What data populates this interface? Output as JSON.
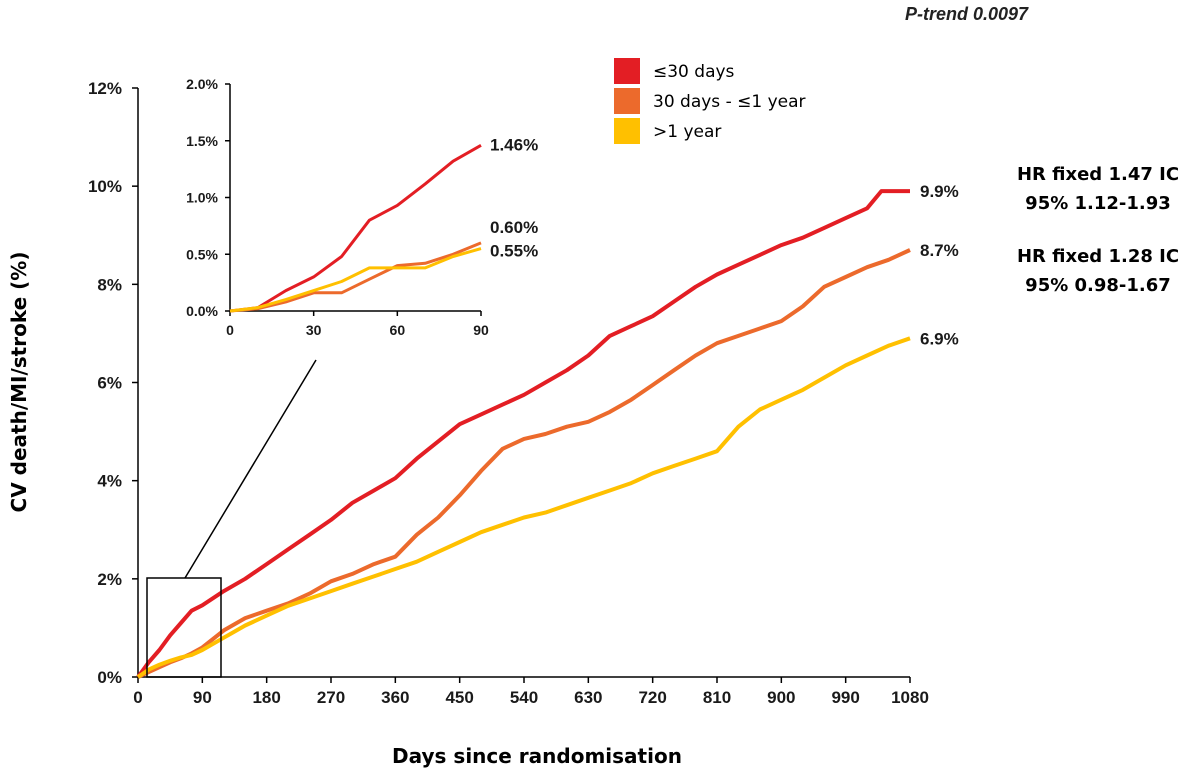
{
  "chart_data": [
    {
      "type": "line",
      "title": "",
      "xlabel": "Days since randomisation",
      "ylabel": "CV death/MI/stroke  (%)",
      "xlim": [
        0,
        1080
      ],
      "ylim": [
        0,
        12
      ],
      "x_ticks": [
        "0",
        "90",
        "180",
        "270",
        "360",
        "450",
        "540",
        "630",
        "720",
        "810",
        "900",
        "990",
        "1080"
      ],
      "y_ticks": [
        "0%",
        "2%",
        "4%",
        "6%",
        "8%",
        "10%",
        "12%"
      ],
      "legend_position": "top-center",
      "series": [
        {
          "name": "≤30 days",
          "color": "#e31e24",
          "end_label": "9.9%",
          "points": [
            [
              0,
              0
            ],
            [
              15,
              0.3
            ],
            [
              30,
              0.55
            ],
            [
              45,
              0.85
            ],
            [
              60,
              1.1
            ],
            [
              75,
              1.35
            ],
            [
              90,
              1.46
            ],
            [
              120,
              1.75
            ],
            [
              150,
              2.0
            ],
            [
              180,
              2.3
            ],
            [
              210,
              2.6
            ],
            [
              240,
              2.9
            ],
            [
              270,
              3.2
            ],
            [
              300,
              3.55
            ],
            [
              330,
              3.8
            ],
            [
              360,
              4.05
            ],
            [
              390,
              4.45
            ],
            [
              420,
              4.8
            ],
            [
              450,
              5.15
            ],
            [
              480,
              5.35
            ],
            [
              510,
              5.55
            ],
            [
              540,
              5.75
            ],
            [
              570,
              6.0
            ],
            [
              600,
              6.25
            ],
            [
              630,
              6.55
            ],
            [
              660,
              6.95
            ],
            [
              690,
              7.15
            ],
            [
              720,
              7.35
            ],
            [
              750,
              7.65
            ],
            [
              780,
              7.95
            ],
            [
              810,
              8.2
            ],
            [
              840,
              8.4
            ],
            [
              870,
              8.6
            ],
            [
              900,
              8.8
            ],
            [
              930,
              8.95
            ],
            [
              960,
              9.15
            ],
            [
              990,
              9.35
            ],
            [
              1020,
              9.55
            ],
            [
              1040,
              9.9
            ],
            [
              1080,
              9.9
            ]
          ]
        },
        {
          "name": "30 days - ≤1 year",
          "color": "#ec6a2c",
          "end_label": "8.7%",
          "points": [
            [
              0,
              0
            ],
            [
              15,
              0.1
            ],
            [
              30,
              0.2
            ],
            [
              45,
              0.3
            ],
            [
              60,
              0.38
            ],
            [
              75,
              0.48
            ],
            [
              90,
              0.6
            ],
            [
              120,
              0.95
            ],
            [
              150,
              1.2
            ],
            [
              180,
              1.35
            ],
            [
              210,
              1.5
            ],
            [
              240,
              1.7
            ],
            [
              270,
              1.95
            ],
            [
              300,
              2.1
            ],
            [
              330,
              2.3
            ],
            [
              360,
              2.45
            ],
            [
              390,
              2.9
            ],
            [
              420,
              3.25
            ],
            [
              450,
              3.7
            ],
            [
              480,
              4.2
            ],
            [
              510,
              4.65
            ],
            [
              540,
              4.85
            ],
            [
              570,
              4.95
            ],
            [
              600,
              5.1
            ],
            [
              630,
              5.2
            ],
            [
              660,
              5.4
            ],
            [
              690,
              5.65
            ],
            [
              720,
              5.95
            ],
            [
              750,
              6.25
            ],
            [
              780,
              6.55
            ],
            [
              810,
              6.8
            ],
            [
              840,
              6.95
            ],
            [
              870,
              7.1
            ],
            [
              900,
              7.25
            ],
            [
              930,
              7.55
            ],
            [
              960,
              7.95
            ],
            [
              990,
              8.15
            ],
            [
              1020,
              8.35
            ],
            [
              1050,
              8.5
            ],
            [
              1080,
              8.7
            ]
          ]
        },
        {
          "name": ">1 year",
          "color": "#ffc000",
          "end_label": "6.9%",
          "points": [
            [
              0,
              0
            ],
            [
              15,
              0.15
            ],
            [
              30,
              0.25
            ],
            [
              45,
              0.33
            ],
            [
              60,
              0.4
            ],
            [
              75,
              0.45
            ],
            [
              90,
              0.55
            ],
            [
              120,
              0.8
            ],
            [
              150,
              1.05
            ],
            [
              180,
              1.25
            ],
            [
              210,
              1.45
            ],
            [
              240,
              1.6
            ],
            [
              270,
              1.75
            ],
            [
              300,
              1.9
            ],
            [
              330,
              2.05
            ],
            [
              360,
              2.2
            ],
            [
              390,
              2.35
            ],
            [
              420,
              2.55
            ],
            [
              450,
              2.75
            ],
            [
              480,
              2.95
            ],
            [
              510,
              3.1
            ],
            [
              540,
              3.25
            ],
            [
              570,
              3.35
            ],
            [
              600,
              3.5
            ],
            [
              630,
              3.65
            ],
            [
              660,
              3.8
            ],
            [
              690,
              3.95
            ],
            [
              720,
              4.15
            ],
            [
              750,
              4.3
            ],
            [
              780,
              4.45
            ],
            [
              810,
              4.6
            ],
            [
              840,
              5.1
            ],
            [
              870,
              5.45
            ],
            [
              900,
              5.65
            ],
            [
              930,
              5.85
            ],
            [
              960,
              6.1
            ],
            [
              990,
              6.35
            ],
            [
              1020,
              6.55
            ],
            [
              1050,
              6.75
            ],
            [
              1080,
              6.9
            ]
          ]
        }
      ]
    },
    {
      "type": "line",
      "title": "",
      "xlim": [
        0,
        90
      ],
      "ylim": [
        0,
        2
      ],
      "x_ticks": [
        "0",
        "30",
        "60",
        "90"
      ],
      "y_ticks": [
        "0.0%",
        "0.5%",
        "1.0%",
        "1.5%",
        "2.0%"
      ],
      "series": [
        {
          "name": "≤30 days",
          "color": "#e31e24",
          "end_label": "1.46%",
          "points": [
            [
              0,
              0
            ],
            [
              10,
              0.03
            ],
            [
              20,
              0.18
            ],
            [
              30,
              0.3
            ],
            [
              40,
              0.48
            ],
            [
              50,
              0.8
            ],
            [
              60,
              0.93
            ],
            [
              70,
              1.12
            ],
            [
              80,
              1.32
            ],
            [
              90,
              1.46
            ]
          ]
        },
        {
          "name": "30 days - ≤1 year",
          "color": "#ec6a2c",
          "end_label": "0.60%",
          "points": [
            [
              0,
              0
            ],
            [
              10,
              0.02
            ],
            [
              20,
              0.08
            ],
            [
              30,
              0.16
            ],
            [
              40,
              0.16
            ],
            [
              50,
              0.28
            ],
            [
              60,
              0.4
            ],
            [
              70,
              0.42
            ],
            [
              80,
              0.5
            ],
            [
              90,
              0.6
            ]
          ]
        },
        {
          "name": ">1 year",
          "color": "#ffc000",
          "end_label": "0.55%",
          "points": [
            [
              0,
              0
            ],
            [
              10,
              0.03
            ],
            [
              20,
              0.1
            ],
            [
              30,
              0.18
            ],
            [
              40,
              0.26
            ],
            [
              50,
              0.38
            ],
            [
              60,
              0.38
            ],
            [
              70,
              0.38
            ],
            [
              80,
              0.48
            ],
            [
              90,
              0.55
            ]
          ]
        }
      ]
    }
  ],
  "legend": {
    "items": [
      {
        "label": "≤30 days",
        "color": "#e31e24"
      },
      {
        "label": "30 days - ≤1 year",
        "color": "#ec6a2c"
      },
      {
        "label": ">1 year",
        "color": "#ffc000"
      }
    ]
  },
  "annotations": {
    "p_trend_label": "P-trend 0.0097",
    "hr1_line1": "HR fixed 1.47 IC",
    "hr1_line2": "95% 1.12-1.93",
    "hr2_line1": "HR fixed  1.28 IC",
    "hr2_line2": "95% 0.98-1.67"
  }
}
